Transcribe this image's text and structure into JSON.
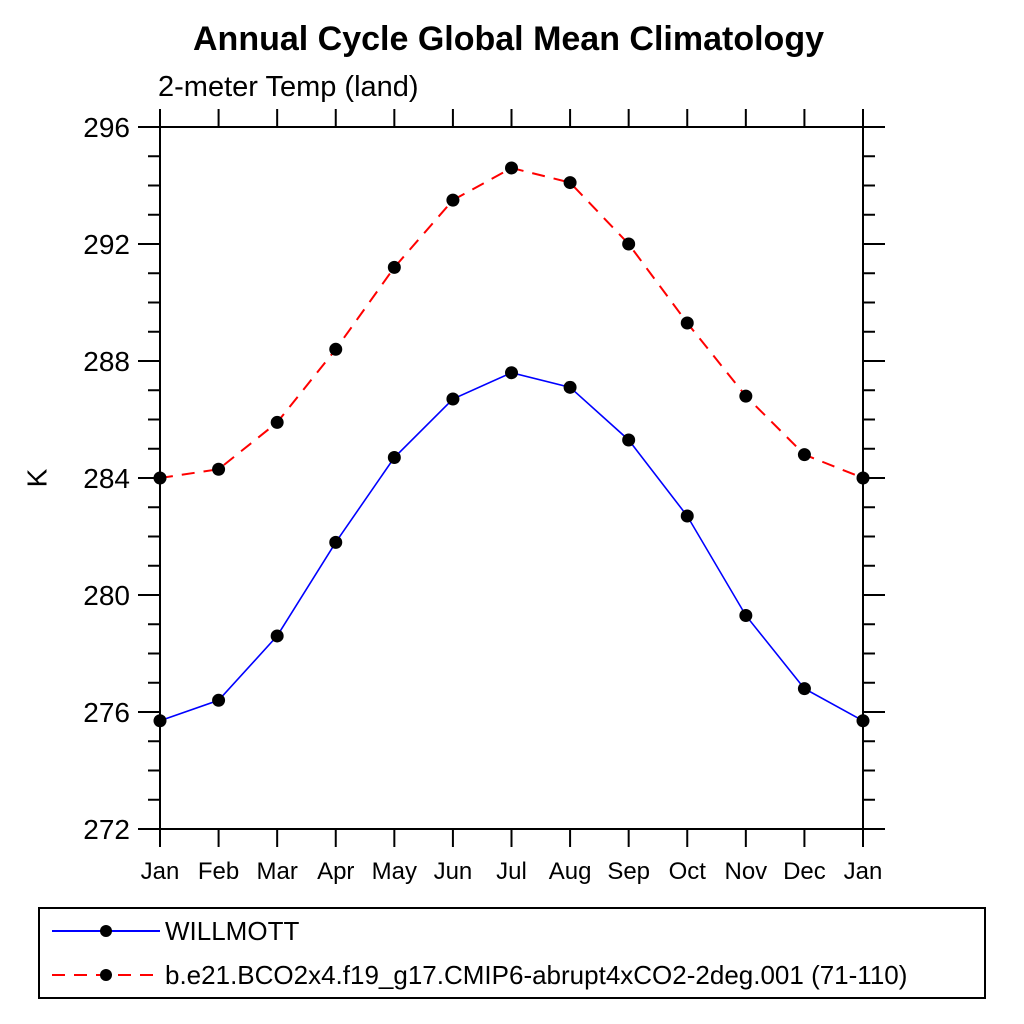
{
  "page": {
    "background": "#ffffff",
    "text_color": "#000000",
    "axis_color": "#000000"
  },
  "chart_data": {
    "type": "line",
    "title": "Annual Cycle Global Mean Climatology",
    "subtitle": "2-meter Temp (land)",
    "ylabel": "K",
    "xlabel": "",
    "categories": [
      "Jan",
      "Feb",
      "Mar",
      "Apr",
      "May",
      "Jun",
      "Jul",
      "Aug",
      "Sep",
      "Oct",
      "Nov",
      "Dec",
      "Jan"
    ],
    "series": [
      {
        "name": "WILLMOTT",
        "color": "#0000ff",
        "line_style": "solid",
        "marker": "filled-circle",
        "marker_color": "#000000",
        "values": [
          275.7,
          276.4,
          278.6,
          281.8,
          284.7,
          286.7,
          287.6,
          287.1,
          285.3,
          282.7,
          279.3,
          276.8,
          275.7
        ]
      },
      {
        "name": "b.e21.BCO2x4.f19_g17.CMIP6-abrupt4xCO2-2deg.001 (71-110)",
        "color": "#ff0000",
        "line_style": "dashed",
        "marker": "filled-circle",
        "marker_color": "#000000",
        "values": [
          284.0,
          284.3,
          285.9,
          288.4,
          291.2,
          293.5,
          294.6,
          294.1,
          292.0,
          289.3,
          286.8,
          284.8,
          284.0
        ]
      }
    ],
    "ylim": [
      272,
      296
    ],
    "y_major_step": 4,
    "y_minor_step": 1,
    "y_tick_labels": [
      "272",
      "276",
      "280",
      "284",
      "288",
      "292",
      "296"
    ],
    "grid": false,
    "legend_position": "bottom-box"
  }
}
